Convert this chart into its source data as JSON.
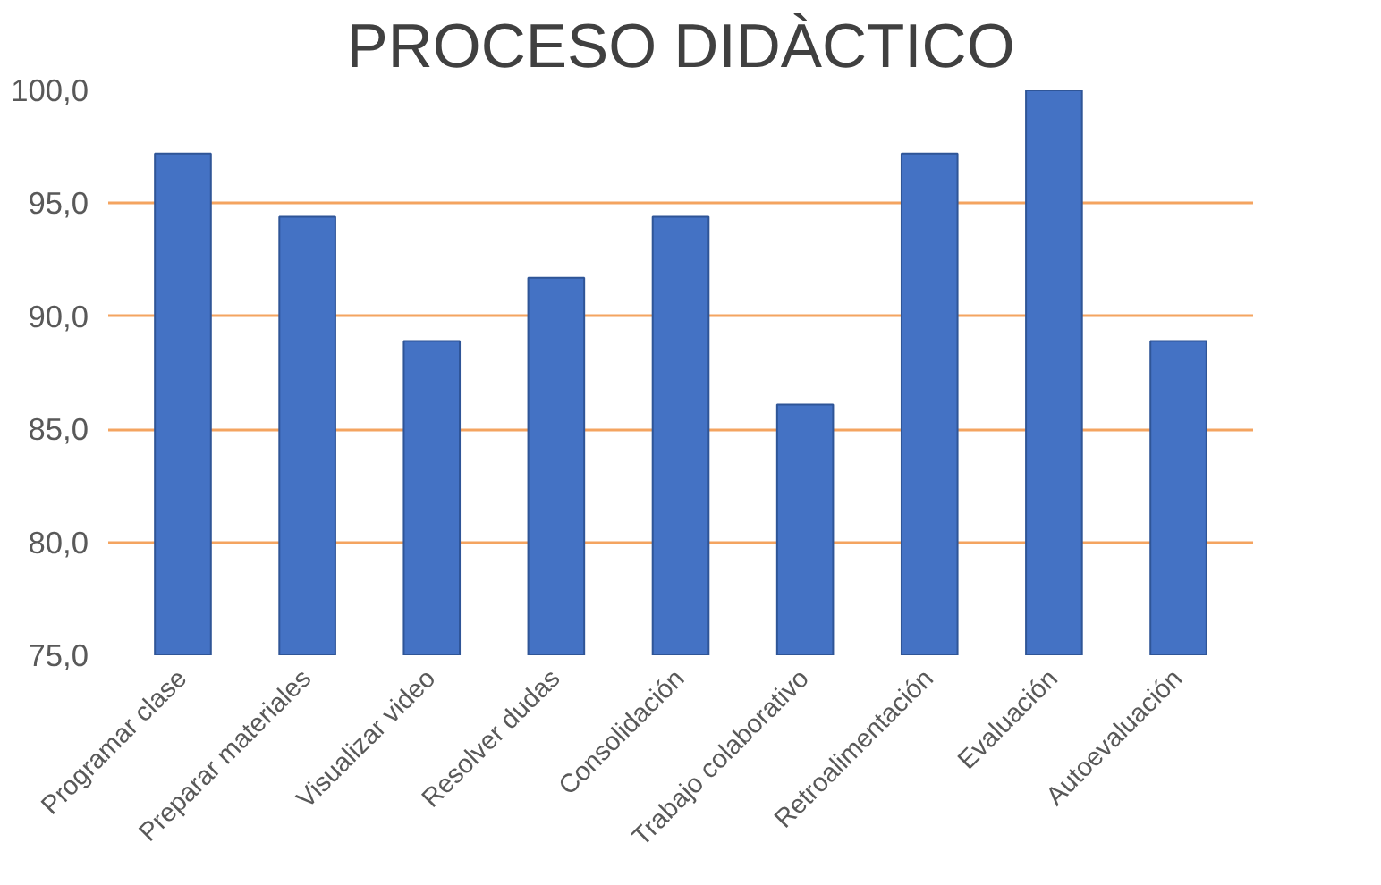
{
  "chart_data": {
    "type": "bar",
    "title": "PROCESO DIDÀCTICO",
    "categories": [
      "Programar clase",
      "Preparar materiales",
      "Visualizar video",
      "Resolver dudas",
      "Consolidación",
      "Trabajo colaborativo",
      "Retroalimentación",
      "Evaluación",
      "Autoevaluación"
    ],
    "values": [
      97.2,
      94.4,
      88.9,
      91.7,
      94.4,
      86.1,
      97.2,
      100,
      88.9
    ],
    "color": "#4472c4",
    "ylim": [
      75,
      100
    ],
    "yticks": [
      {
        "value": 75,
        "label": "75,0"
      },
      {
        "value": 80,
        "label": "80,0"
      },
      {
        "value": 85,
        "label": "85,0"
      },
      {
        "value": 90,
        "label": "90,0"
      },
      {
        "value": 95,
        "label": "95,0"
      },
      {
        "value": 100,
        "label": "100,0"
      }
    ],
    "grid": "y"
  }
}
